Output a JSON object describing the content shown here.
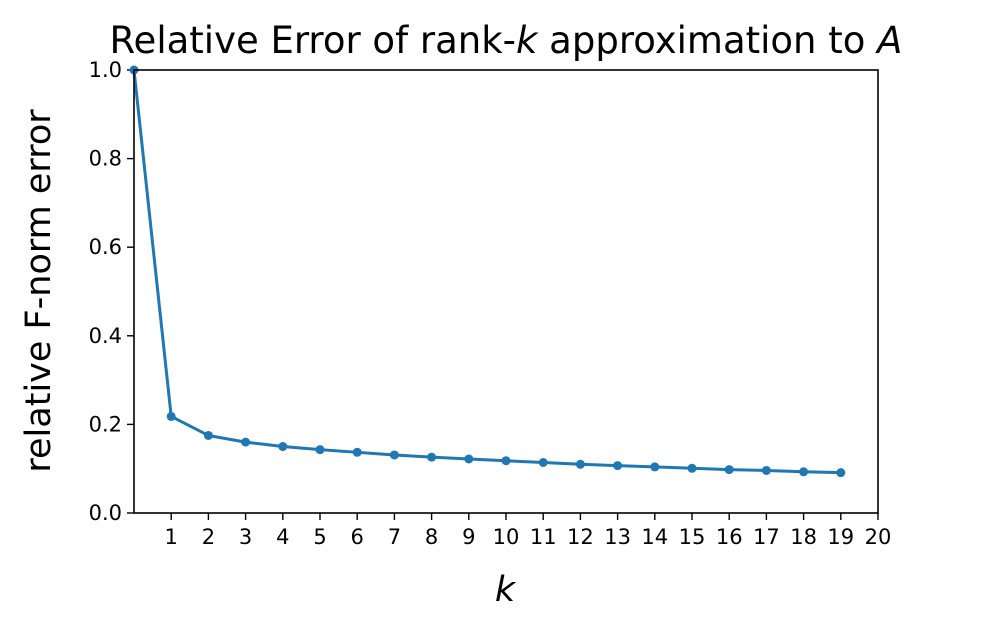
{
  "chart_data": {
    "type": "line",
    "title": {
      "prefix": "Relative Error of rank-",
      "k": "k",
      "middle": " approximation to ",
      "matrix": "A"
    },
    "xlabel": "k",
    "ylabel": "relative F-norm error",
    "xlim": [
      0,
      20
    ],
    "ylim": [
      0.0,
      1.0
    ],
    "xticks": [
      1,
      2,
      3,
      4,
      5,
      6,
      7,
      8,
      9,
      10,
      11,
      12,
      13,
      14,
      15,
      16,
      17,
      18,
      19,
      20
    ],
    "yticks": [
      "0.0",
      "0.2",
      "0.4",
      "0.6",
      "0.8",
      "1.0"
    ],
    "grid": false,
    "color": "#1f77b4",
    "series": [
      {
        "x": [
          0,
          1,
          2,
          3,
          4,
          5,
          6,
          7,
          8,
          9,
          10,
          11,
          12,
          13,
          14,
          15,
          16,
          17,
          18,
          19
        ],
        "y": [
          1.0,
          0.218,
          0.175,
          0.16,
          0.15,
          0.143,
          0.137,
          0.131,
          0.126,
          0.122,
          0.118,
          0.114,
          0.11,
          0.107,
          0.104,
          0.101,
          0.098,
          0.096,
          0.093,
          0.091
        ]
      }
    ]
  }
}
